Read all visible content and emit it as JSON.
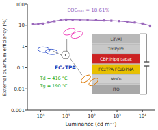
{
  "chart_data": {
    "type": "line",
    "log": true,
    "grid": false,
    "xlabel": "Luminance (cd m⁻²)",
    "ylabel": "External quantum efficiency (%)",
    "x": [
      0.5,
      0.8,
      1.2,
      2.0,
      3.5,
      6,
      10,
      18,
      35,
      70,
      150,
      300,
      600,
      1200,
      2500,
      5000,
      10000,
      20000
    ],
    "series": [
      {
        "color": "#9966bb",
        "marker": "square",
        "values": [
          11.2,
          11.5,
          12.0,
          13.5,
          15.5,
          17.5,
          18.61,
          18.4,
          18.2,
          17.9,
          17.5,
          17.0,
          16.5,
          15.8,
          14.8,
          13.5,
          12.0,
          9.5
        ]
      }
    ],
    "xlim": [
      0.3,
      30000
    ],
    "xticks": [
      {
        "value": 1,
        "label": "10⁰"
      },
      {
        "value": 10,
        "label": "10¹"
      },
      {
        "value": 100,
        "label": "10²"
      },
      {
        "value": 1000,
        "label": "10³"
      },
      {
        "value": 10000,
        "label": "10⁴"
      }
    ],
    "ylim": [
      0.001,
      100
    ],
    "yticks": [
      {
        "value": 0.001,
        "label": "0.001"
      },
      {
        "value": 0.01,
        "label": "0.01"
      },
      0.1,
      1,
      10,
      100
    ],
    "annotations": [
      {
        "text": "EQEₘₐₓ = 18.61%",
        "color": "#9966bb"
      },
      {
        "text": "FCzTPA",
        "color": "#2244bb"
      },
      {
        "text": "Td = 416 °C",
        "color": "#22aa22"
      },
      {
        "text": "Tg = 190 °C",
        "color": "#22aa22"
      }
    ],
    "device_stack": {
      "labels": [
        "LiF/Al",
        "TmPyPb",
        "CBP:Ir(pq)₂acac",
        "FCzTPA   FCzDPNA",
        "MoO₃",
        "ITO"
      ],
      "colors": [
        "#b8b8b8",
        "#c8c8c8",
        "#cc2222",
        "#e8c000",
        "#d0d0d0",
        "#a8a8a8"
      ],
      "text_colors": [
        "#333333",
        "#333333",
        "#ffffff",
        "#333333",
        "#333333",
        "#333333"
      ]
    }
  }
}
